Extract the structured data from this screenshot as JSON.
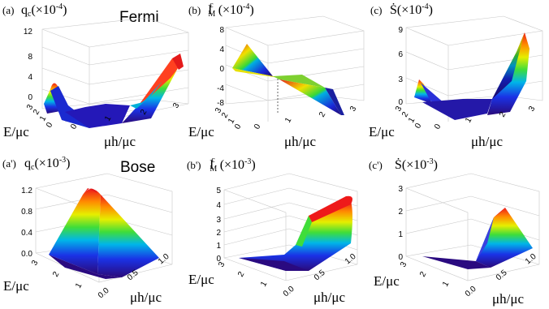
{
  "row_labels": {
    "top": "Fermi",
    "bottom": "Bose"
  },
  "chart_data": [
    {
      "type": "surface",
      "panel_label": "(a)",
      "title_symbol": "q",
      "title_sub": "c",
      "title_sup": "",
      "title_scale": "(×10",
      "title_exp": "-4",
      "title_close": ")",
      "xlabel": "μh/μc",
      "ylabel": "E/μc",
      "zlim": [
        0,
        12
      ],
      "zticks": [
        "0",
        "4",
        "8",
        "12"
      ],
      "ztick_values": [
        0,
        4,
        8,
        12
      ],
      "xticks": [
        "0",
        "1",
        "2",
        "3"
      ],
      "yticks": [
        "0",
        "1",
        "2",
        "3"
      ],
      "colormap": "rainbow",
      "data": {
        "x_range": [
          0,
          3
        ],
        "y_range": [
          0,
          3
        ],
        "minimum_at_x": 1.0,
        "values_at_y_max": [
          {
            "x": 0,
            "z": 3.6
          },
          {
            "x": 1,
            "z": 0.0
          },
          {
            "x": 3,
            "z": 8.0
          }
        ]
      }
    },
    {
      "type": "surface",
      "panel_label": "(b)",
      "title_symbol": "I",
      "title_sub": "M",
      "title_sup": "c",
      "title_scale": "(×10",
      "title_exp": "-4",
      "title_close": ")",
      "xlabel": "μh/μc",
      "ylabel": "E/μc",
      "zlim": [
        -8,
        8
      ],
      "zticks": [
        "8",
        "4",
        "0",
        "-4",
        "-8"
      ],
      "ztick_values": [
        8,
        4,
        0,
        -4,
        -8
      ],
      "xticks": [
        "0",
        "1",
        "2",
        "3"
      ],
      "yticks": [
        "0",
        "1",
        "2",
        "3"
      ],
      "colormap": "rainbow",
      "data": {
        "x_range": [
          0,
          3
        ],
        "y_range": [
          0,
          3
        ],
        "zero_at_x": 1.0,
        "values_at_y_max": [
          {
            "x": 0,
            "z": 5.0
          },
          {
            "x": 1,
            "z": 0.0
          },
          {
            "x": 3,
            "z": -6.0
          }
        ]
      }
    },
    {
      "type": "surface",
      "panel_label": "(c)",
      "title_symbol": "Ṡ",
      "title_sub": "",
      "title_sup": "",
      "title_scale": "(×10",
      "title_exp": "-4",
      "title_close": ")",
      "xlabel": "μh/μc",
      "ylabel": "E/μc",
      "zlim": [
        0,
        9
      ],
      "zticks": [
        "9",
        "6",
        "3",
        "0"
      ],
      "ztick_values": [
        9,
        6,
        3,
        0
      ],
      "xticks": [
        "0",
        "1",
        "2",
        "3"
      ],
      "yticks": [
        "0",
        "1",
        "2",
        "3"
      ],
      "colormap": "rainbow",
      "data": {
        "x_range": [
          0,
          3
        ],
        "y_range": [
          0,
          3
        ],
        "minimum_at_x": 1.0,
        "values_at_y_max": [
          {
            "x": 0,
            "z": 2.4
          },
          {
            "x": 1,
            "z": 0.0
          },
          {
            "x": 3,
            "z": 9.0
          }
        ]
      }
    },
    {
      "type": "surface",
      "panel_label": "(a')",
      "title_symbol": "q",
      "title_sub": "c",
      "title_sup": "",
      "title_scale": "(×10",
      "title_exp": "-3",
      "title_close": ")",
      "xlabel": "μh/μc",
      "ylabel": "E/μc",
      "zlim": [
        0,
        1.2
      ],
      "zticks": [
        "1.2",
        "0.8",
        "0.4",
        "0.0"
      ],
      "ztick_values": [
        1.2,
        0.8,
        0.4,
        0.0
      ],
      "xticks": [
        "0.0",
        "0.5",
        "1.0"
      ],
      "yticks": [
        "1",
        "2",
        "3"
      ],
      "colormap": "rainbow",
      "data": {
        "x_range": [
          0,
          1
        ],
        "y_range": [
          1,
          3
        ],
        "peak": {
          "x": 0.0,
          "y": 1.0,
          "z": 1.15
        }
      }
    },
    {
      "type": "surface",
      "panel_label": "(b')",
      "title_symbol": "I",
      "title_sub": "M",
      "title_sup": "c",
      "title_scale": "(×10",
      "title_exp": "-3",
      "title_close": ")",
      "xlabel": "μh/μc",
      "ylabel": "E/μc",
      "zlim": [
        0,
        5
      ],
      "zticks": [
        "5",
        "4",
        "3",
        "2",
        "1",
        "0"
      ],
      "ztick_values": [
        5,
        4,
        3,
        2,
        1,
        0
      ],
      "xticks": [
        "0.0",
        "0.5",
        "1.0"
      ],
      "yticks": [
        "1",
        "2",
        "3"
      ],
      "colormap": "rainbow",
      "data": {
        "x_range": [
          0,
          1
        ],
        "y_range": [
          1,
          3
        ],
        "peak": {
          "x": 1.0,
          "y": 1.0,
          "z": 4.2
        }
      }
    },
    {
      "type": "surface",
      "panel_label": "(c')",
      "title_symbol": "Ṡ",
      "title_sub": "",
      "title_sup": "",
      "title_scale": "(×10",
      "title_exp": "-3",
      "title_close": ")",
      "xlabel": "μh/μc",
      "ylabel": "E/μc",
      "zlim": [
        0,
        3
      ],
      "zticks": [
        "3",
        "2",
        "1",
        "0"
      ],
      "ztick_values": [
        3,
        2,
        1,
        0
      ],
      "xticks": [
        "0.0",
        "0.5",
        "1.0"
      ],
      "yticks": [
        "1",
        "2",
        "3"
      ],
      "colormap": "rainbow",
      "data": {
        "x_range": [
          0,
          1
        ],
        "y_range": [
          1,
          3
        ],
        "peak": {
          "x": 1.0,
          "y": 1.0,
          "z": 1.9
        }
      }
    }
  ]
}
